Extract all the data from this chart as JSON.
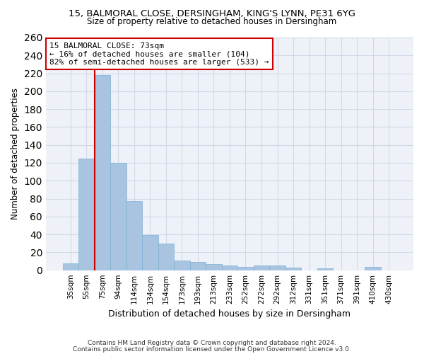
{
  "title_line1": "15, BALMORAL CLOSE, DERSINGHAM, KING'S LYNN, PE31 6YG",
  "title_line2": "Size of property relative to detached houses in Dersingham",
  "xlabel": "Distribution of detached houses by size in Dersingham",
  "ylabel": "Number of detached properties",
  "categories": [
    "35sqm",
    "55sqm",
    "75sqm",
    "94sqm",
    "114sqm",
    "134sqm",
    "154sqm",
    "173sqm",
    "193sqm",
    "213sqm",
    "233sqm",
    "252sqm",
    "272sqm",
    "292sqm",
    "312sqm",
    "331sqm",
    "351sqm",
    "371sqm",
    "391sqm",
    "410sqm",
    "430sqm"
  ],
  "values": [
    8,
    125,
    218,
    120,
    77,
    39,
    30,
    11,
    9,
    7,
    5,
    4,
    5,
    5,
    3,
    0,
    2,
    0,
    0,
    4,
    0
  ],
  "bar_color": "#a8c4e0",
  "bar_edge_color": "#7aafd4",
  "property_line_x": 1.5,
  "annotation_box_text_line1": "15 BALMORAL CLOSE: 73sqm",
  "annotation_box_text_line2": "← 16% of detached houses are smaller (104)",
  "annotation_box_text_line3": "82% of semi-detached houses are larger (533) →",
  "red_line_color": "#cc0000",
  "ylim": [
    0,
    260
  ],
  "yticks": [
    0,
    20,
    40,
    60,
    80,
    100,
    120,
    140,
    160,
    180,
    200,
    220,
    240,
    260
  ],
  "grid_color": "#d0d8e8",
  "background_color": "#eef2f8",
  "footer_line1": "Contains HM Land Registry data © Crown copyright and database right 2024.",
  "footer_line2": "Contains public sector information licensed under the Open Government Licence v3.0."
}
